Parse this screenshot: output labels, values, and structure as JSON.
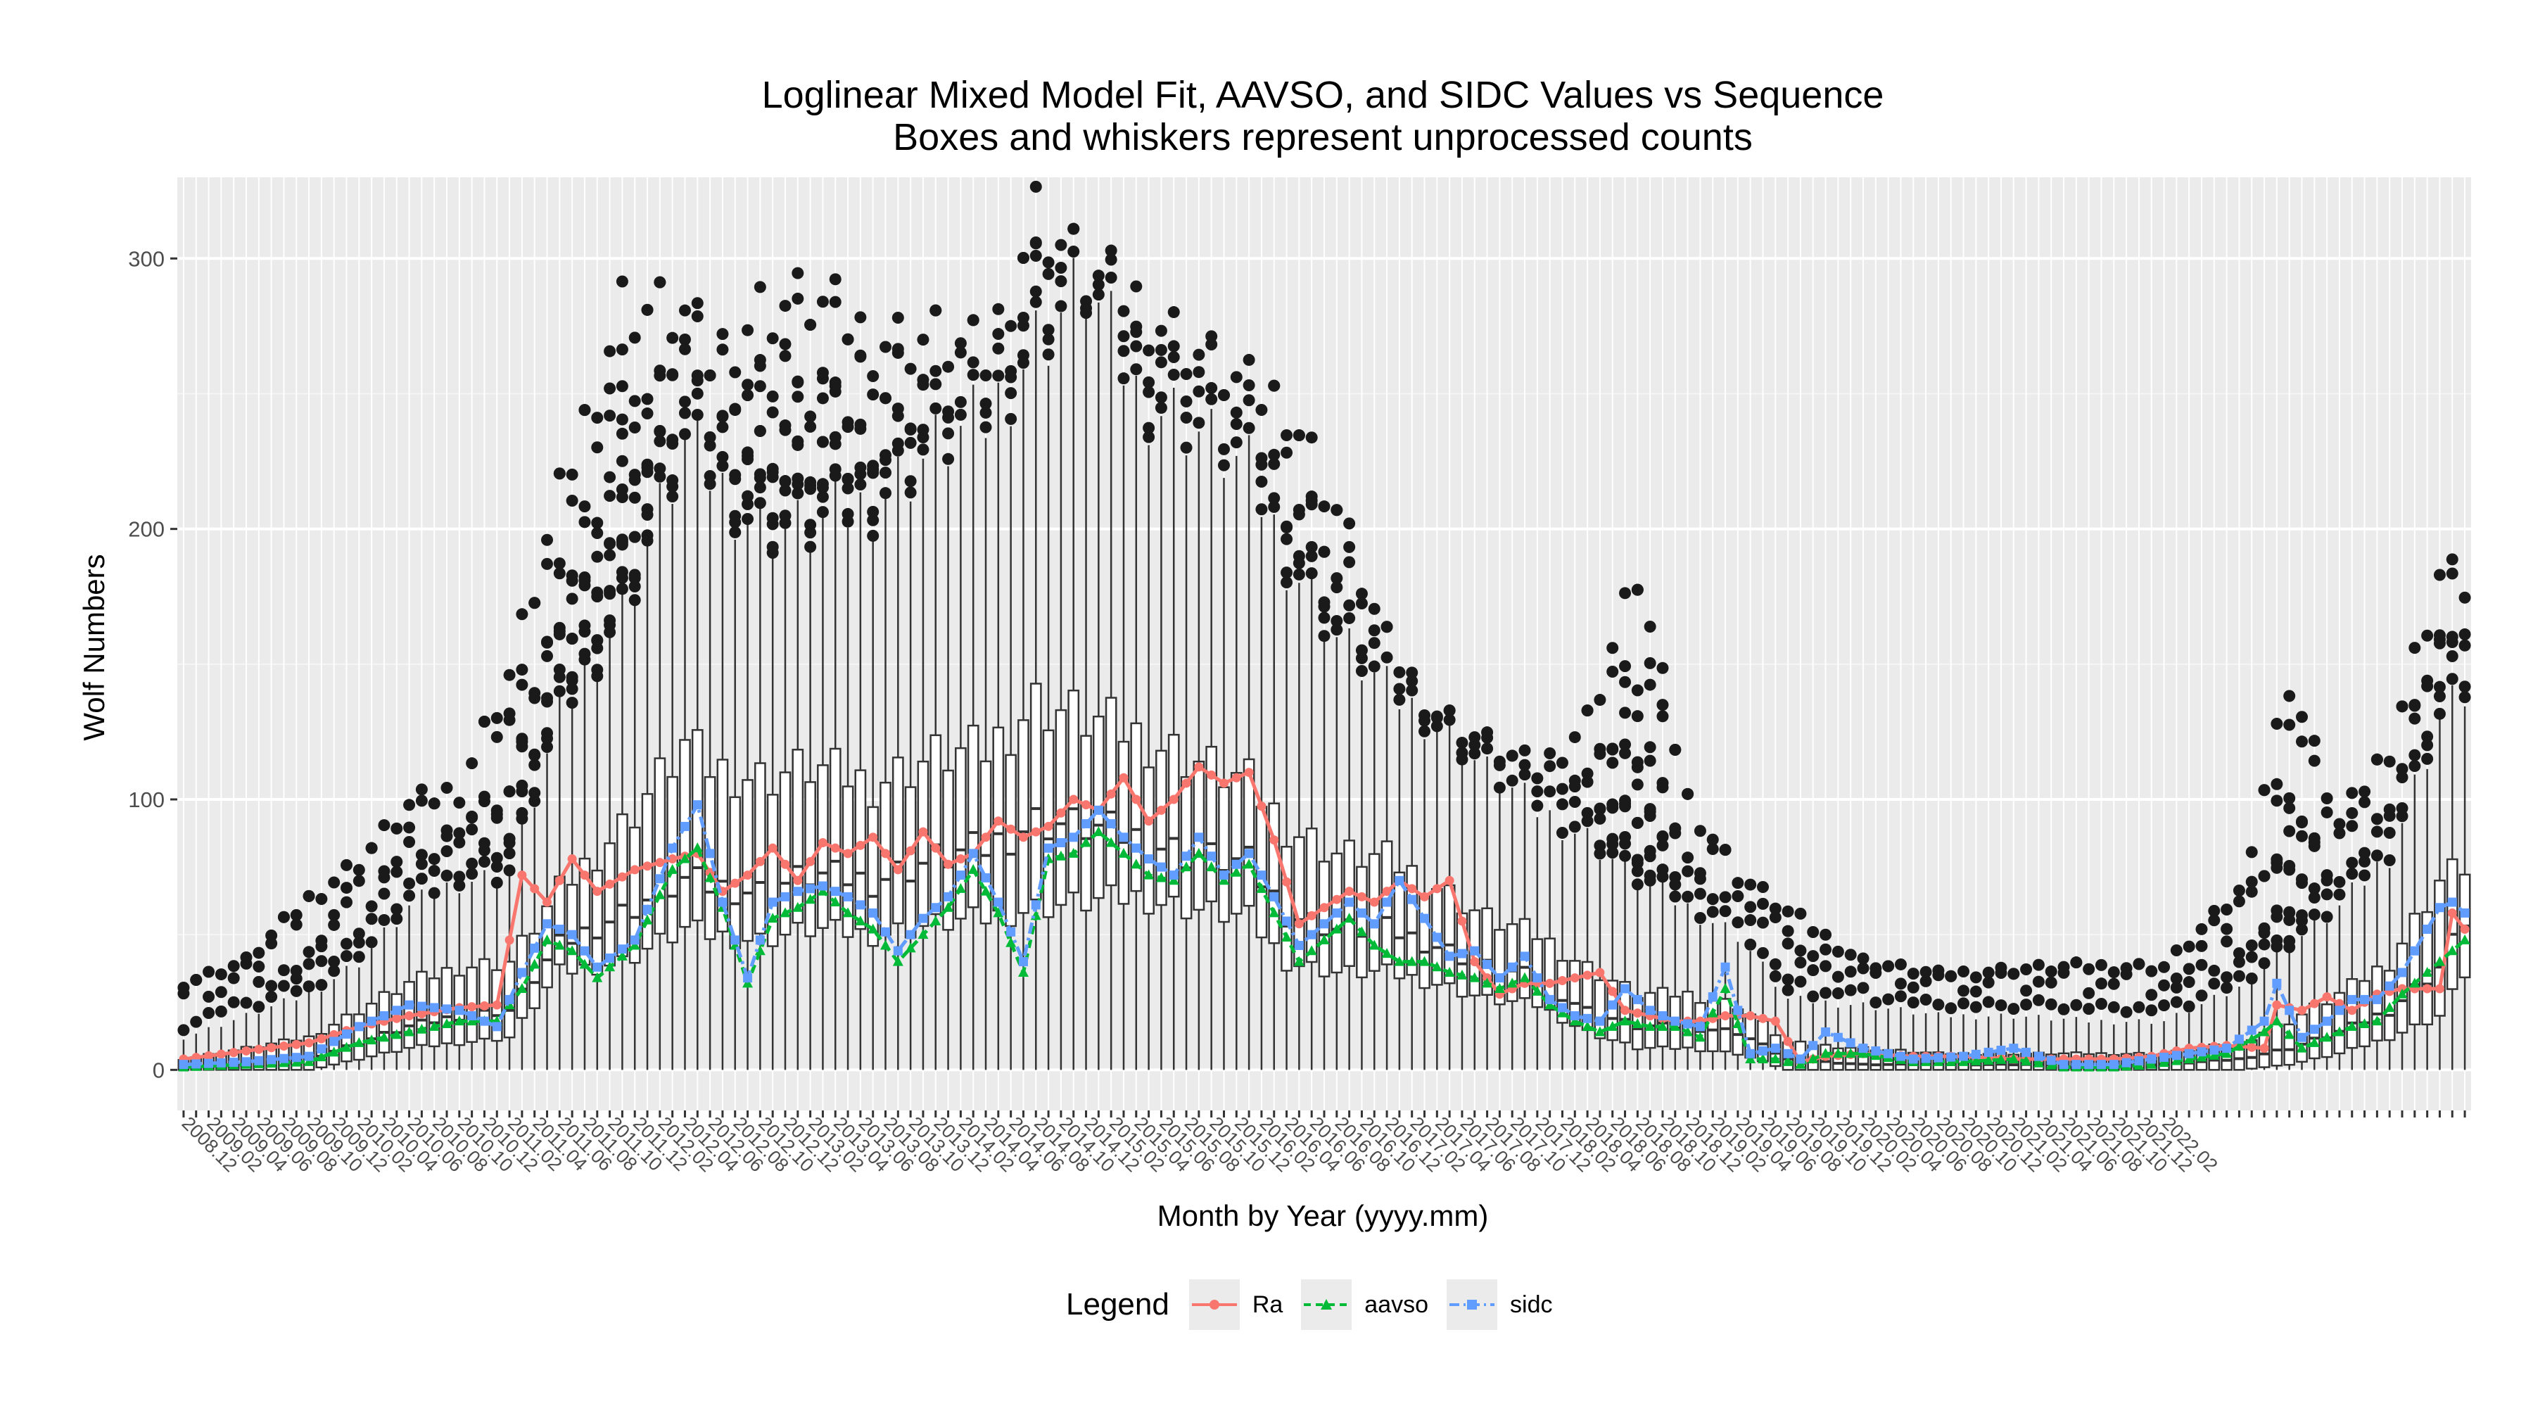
{
  "chart_data": {
    "type": "box-line",
    "title": "Loglinear Mixed Model Fit, AAVSO, and SIDC Values vs Sequence",
    "subtitle": "Boxes and whiskers represent unprocessed counts",
    "xlabel": "Month by Year (yyyy.mm)",
    "ylabel": "Wolf Numbers",
    "ylim": [
      -15,
      330
    ],
    "yticks": [
      0,
      100,
      200,
      300
    ],
    "grid": true,
    "legend_position": "bottom",
    "legend_title": "Legend",
    "start_month": "2008.12",
    "xtick_labels": [
      "2008.12",
      "2009.02",
      "2009.04",
      "2009.06",
      "2009.08",
      "2009.10",
      "2009.12",
      "2010.02",
      "2010.04",
      "2010.06",
      "2010.08",
      "2010.10",
      "2010.12",
      "2011.02",
      "2011.04",
      "2011.06",
      "2011.08",
      "2011.10",
      "2011.12",
      "2012.02",
      "2012.04",
      "2012.06",
      "2012.08",
      "2012.10",
      "2012.12",
      "2013.02",
      "2013.04",
      "2013.06",
      "2013.08",
      "2013.10",
      "2013.12",
      "2014.02",
      "2014.04",
      "2014.06",
      "2014.08",
      "2014.10",
      "2014.12",
      "2015.02",
      "2015.04",
      "2015.06",
      "2015.08",
      "2015.10",
      "2015.12",
      "2016.02",
      "2016.04",
      "2016.06",
      "2016.08",
      "2016.10",
      "2016.12",
      "2017.02",
      "2017.04",
      "2017.06",
      "2017.08",
      "2017.10",
      "2017.12",
      "2018.02",
      "2018.04",
      "2018.06",
      "2018.08",
      "2018.10",
      "2018.12",
      "2019.02",
      "2019.04",
      "2019.06",
      "2019.08",
      "2019.10",
      "2019.12",
      "2020.02",
      "2020.04",
      "2020.06",
      "2020.08",
      "2020.10",
      "2020.12",
      "2021.02",
      "2021.04",
      "2021.06",
      "2021.08",
      "2021.10",
      "2021.12",
      "2022.02"
    ],
    "series": [
      {
        "name": "Ra",
        "color": "#F8766D",
        "marker": "circle",
        "line": "solid",
        "anchors": [
          [
            0,
            4
          ],
          [
            5,
            7
          ],
          [
            10,
            10
          ],
          [
            14,
            16
          ],
          [
            18,
            20
          ],
          [
            22,
            23
          ],
          [
            25,
            24
          ],
          [
            27,
            72
          ],
          [
            29,
            62
          ],
          [
            31,
            78
          ],
          [
            33,
            66
          ],
          [
            36,
            74
          ],
          [
            39,
            78
          ],
          [
            41,
            80
          ],
          [
            43,
            66
          ],
          [
            45,
            72
          ],
          [
            47,
            82
          ],
          [
            49,
            70
          ],
          [
            51,
            84
          ],
          [
            53,
            80
          ],
          [
            55,
            86
          ],
          [
            57,
            74
          ],
          [
            59,
            88
          ],
          [
            61,
            76
          ],
          [
            63,
            80
          ],
          [
            65,
            92
          ],
          [
            67,
            86
          ],
          [
            69,
            90
          ],
          [
            71,
            100
          ],
          [
            73,
            96
          ],
          [
            75,
            108
          ],
          [
            77,
            92
          ],
          [
            79,
            100
          ],
          [
            81,
            112
          ],
          [
            83,
            106
          ],
          [
            85,
            110
          ],
          [
            87,
            85
          ],
          [
            89,
            54
          ],
          [
            91,
            60
          ],
          [
            93,
            66
          ],
          [
            95,
            62
          ],
          [
            97,
            70
          ],
          [
            99,
            64
          ],
          [
            101,
            70
          ],
          [
            103,
            40
          ],
          [
            105,
            28
          ],
          [
            107,
            32
          ],
          [
            109,
            32
          ],
          [
            111,
            34
          ],
          [
            113,
            36
          ],
          [
            115,
            22
          ],
          [
            117,
            20
          ],
          [
            119,
            18
          ],
          [
            121,
            18
          ],
          [
            123,
            20
          ],
          [
            125,
            20
          ],
          [
            127,
            18
          ],
          [
            129,
            3
          ],
          [
            131,
            5
          ],
          [
            134,
            6
          ],
          [
            138,
            5
          ],
          [
            142,
            5
          ],
          [
            146,
            4
          ],
          [
            150,
            4
          ],
          [
            154,
            4
          ],
          [
            157,
            5
          ],
          [
            160,
            8
          ],
          [
            163,
            9
          ],
          [
            166,
            8
          ],
          [
            167,
            24
          ],
          [
            169,
            22
          ],
          [
            171,
            27
          ],
          [
            173,
            22
          ],
          [
            175,
            28
          ],
          [
            177,
            30
          ],
          [
            180,
            30
          ],
          [
            181,
            58
          ],
          [
            182,
            52
          ]
        ]
      },
      {
        "name": "aavso",
        "color": "#00BA38",
        "marker": "triangle",
        "line": "dashed",
        "anchors": [
          [
            0,
            1
          ],
          [
            5,
            2
          ],
          [
            10,
            3
          ],
          [
            14,
            10
          ],
          [
            18,
            14
          ],
          [
            22,
            18
          ],
          [
            25,
            18
          ],
          [
            27,
            30
          ],
          [
            29,
            48
          ],
          [
            31,
            44
          ],
          [
            33,
            34
          ],
          [
            36,
            46
          ],
          [
            39,
            74
          ],
          [
            41,
            82
          ],
          [
            43,
            60
          ],
          [
            45,
            32
          ],
          [
            47,
            56
          ],
          [
            49,
            60
          ],
          [
            51,
            66
          ],
          [
            53,
            58
          ],
          [
            55,
            52
          ],
          [
            57,
            40
          ],
          [
            59,
            50
          ],
          [
            61,
            60
          ],
          [
            63,
            74
          ],
          [
            65,
            58
          ],
          [
            67,
            36
          ],
          [
            69,
            78
          ],
          [
            71,
            80
          ],
          [
            73,
            88
          ],
          [
            75,
            80
          ],
          [
            77,
            72
          ],
          [
            79,
            70
          ],
          [
            81,
            80
          ],
          [
            83,
            70
          ],
          [
            85,
            76
          ],
          [
            87,
            58
          ],
          [
            89,
            40
          ],
          [
            91,
            48
          ],
          [
            93,
            56
          ],
          [
            95,
            46
          ],
          [
            97,
            40
          ],
          [
            99,
            40
          ],
          [
            101,
            36
          ],
          [
            103,
            34
          ],
          [
            105,
            30
          ],
          [
            107,
            34
          ],
          [
            109,
            24
          ],
          [
            111,
            18
          ],
          [
            113,
            14
          ],
          [
            115,
            18
          ],
          [
            117,
            16
          ],
          [
            119,
            16
          ],
          [
            121,
            12
          ],
          [
            123,
            30
          ],
          [
            125,
            4
          ],
          [
            127,
            4
          ],
          [
            129,
            2
          ],
          [
            131,
            6
          ],
          [
            134,
            6
          ],
          [
            138,
            3
          ],
          [
            142,
            3
          ],
          [
            146,
            4
          ],
          [
            150,
            1
          ],
          [
            154,
            1
          ],
          [
            157,
            2
          ],
          [
            160,
            4
          ],
          [
            163,
            6
          ],
          [
            166,
            14
          ],
          [
            167,
            18
          ],
          [
            169,
            8
          ],
          [
            171,
            12
          ],
          [
            173,
            16
          ],
          [
            175,
            18
          ],
          [
            177,
            28
          ],
          [
            180,
            40
          ],
          [
            181,
            44
          ],
          [
            182,
            48
          ]
        ]
      },
      {
        "name": "sidc",
        "color": "#619CFF",
        "marker": "square",
        "line": "dotdash",
        "anchors": [
          [
            0,
            2
          ],
          [
            5,
            3
          ],
          [
            10,
            5
          ],
          [
            14,
            16
          ],
          [
            18,
            24
          ],
          [
            22,
            22
          ],
          [
            25,
            16
          ],
          [
            27,
            36
          ],
          [
            29,
            54
          ],
          [
            31,
            50
          ],
          [
            33,
            38
          ],
          [
            36,
            48
          ],
          [
            39,
            82
          ],
          [
            41,
            98
          ],
          [
            43,
            62
          ],
          [
            45,
            34
          ],
          [
            47,
            62
          ],
          [
            49,
            66
          ],
          [
            51,
            68
          ],
          [
            53,
            64
          ],
          [
            55,
            58
          ],
          [
            57,
            44
          ],
          [
            59,
            56
          ],
          [
            61,
            64
          ],
          [
            63,
            80
          ],
          [
            65,
            62
          ],
          [
            67,
            40
          ],
          [
            69,
            82
          ],
          [
            71,
            86
          ],
          [
            73,
            96
          ],
          [
            75,
            86
          ],
          [
            77,
            78
          ],
          [
            79,
            72
          ],
          [
            81,
            86
          ],
          [
            83,
            72
          ],
          [
            85,
            80
          ],
          [
            87,
            64
          ],
          [
            89,
            46
          ],
          [
            91,
            54
          ],
          [
            93,
            62
          ],
          [
            95,
            54
          ],
          [
            97,
            70
          ],
          [
            99,
            56
          ],
          [
            101,
            42
          ],
          [
            103,
            44
          ],
          [
            105,
            34
          ],
          [
            107,
            42
          ],
          [
            109,
            26
          ],
          [
            111,
            20
          ],
          [
            113,
            18
          ],
          [
            115,
            30
          ],
          [
            117,
            22
          ],
          [
            119,
            18
          ],
          [
            121,
            16
          ],
          [
            123,
            38
          ],
          [
            125,
            6
          ],
          [
            127,
            8
          ],
          [
            129,
            4
          ],
          [
            131,
            14
          ],
          [
            134,
            8
          ],
          [
            138,
            4
          ],
          [
            142,
            5
          ],
          [
            146,
            8
          ],
          [
            150,
            2
          ],
          [
            154,
            2
          ],
          [
            157,
            4
          ],
          [
            160,
            6
          ],
          [
            163,
            8
          ],
          [
            166,
            18
          ],
          [
            167,
            32
          ],
          [
            169,
            12
          ],
          [
            171,
            18
          ],
          [
            173,
            26
          ],
          [
            175,
            26
          ],
          [
            177,
            36
          ],
          [
            180,
            60
          ],
          [
            181,
            62
          ],
          [
            182,
            58
          ]
        ]
      }
    ],
    "boxes_envelope": {
      "description": "Monthly boxplots of unprocessed counts (183 months)",
      "months": [
        0,
        5,
        10,
        14,
        18,
        22,
        26,
        30,
        35,
        40,
        42,
        46,
        50,
        55,
        60,
        64,
        68,
        72,
        76,
        80,
        85,
        88,
        92,
        96,
        100,
        104,
        108,
        112,
        116,
        120,
        124,
        128,
        134,
        140,
        146,
        152,
        158,
        164,
        168,
        172,
        176,
        180,
        182
      ],
      "q1": [
        0,
        0,
        0,
        4,
        8,
        10,
        12,
        36,
        40,
        52,
        50,
        48,
        52,
        50,
        54,
        56,
        60,
        62,
        64,
        60,
        56,
        40,
        36,
        36,
        32,
        26,
        24,
        14,
        8,
        8,
        6,
        0,
        0,
        0,
        0,
        0,
        0,
        0,
        2,
        6,
        12,
        20,
        36
      ],
      "median": [
        1,
        2,
        4,
        10,
        16,
        20,
        22,
        46,
        58,
        70,
        68,
        66,
        72,
        70,
        78,
        82,
        92,
        90,
        86,
        80,
        76,
        58,
        52,
        52,
        46,
        38,
        34,
        22,
        16,
        16,
        14,
        4,
        2,
        2,
        2,
        2,
        2,
        4,
        8,
        14,
        22,
        38,
        56
      ],
      "q3": [
        4,
        8,
        12,
        22,
        32,
        38,
        40,
        66,
        90,
        120,
        112,
        108,
        112,
        106,
        116,
        118,
        136,
        130,
        124,
        116,
        106,
        90,
        80,
        78,
        68,
        56,
        50,
        38,
        28,
        28,
        24,
        10,
        8,
        6,
        6,
        6,
        6,
        10,
        18,
        28,
        40,
        70,
        76
      ],
      "whisker_hi": [
        12,
        20,
        28,
        40,
        60,
        70,
        72,
        130,
        170,
        230,
        220,
        200,
        200,
        210,
        230,
        240,
        270,
        290,
        250,
        240,
        220,
        190,
        160,
        140,
        128,
        110,
        96,
        86,
        70,
        60,
        50,
        26,
        24,
        20,
        20,
        18,
        18,
        30,
        46,
        60,
        80,
        130,
        140
      ],
      "outlier_hi": [
        32,
        40,
        63,
        77,
        97,
        104,
        146,
        210,
        283,
        278,
        262,
        281,
        284,
        270,
        270,
        262,
        317,
        293,
        284,
        268,
        250,
        247,
        207,
        156,
        132,
        120,
        110,
        129,
        183,
        100,
        72,
        58,
        40,
        35,
        37,
        38,
        38,
        65,
        144,
        90,
        120,
        183,
        180
      ]
    }
  }
}
